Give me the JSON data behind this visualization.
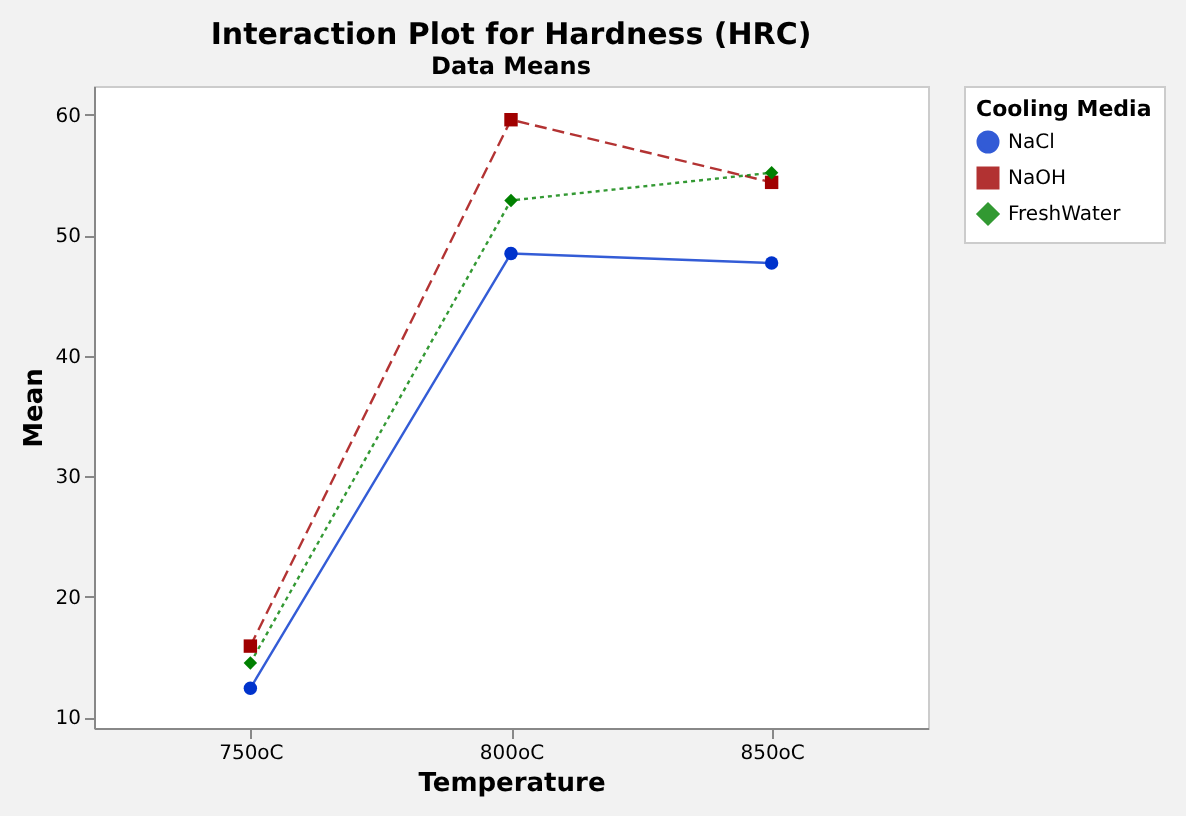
{
  "chart_data": {
    "type": "line",
    "title": "Interaction Plot for Hardness (HRC)",
    "subtitle": "Data Means",
    "xlabel": "Temperature",
    "ylabel": "Mean",
    "legend_title": "Cooling Media",
    "categories": [
      "750oC",
      "800oC",
      "850oC"
    ],
    "series": [
      {
        "name": "NaCl",
        "color": "#0033cc",
        "values": [
          12.4,
          48.5,
          47.7
        ],
        "marker": "circle",
        "line_style": "solid"
      },
      {
        "name": "NaOH",
        "color": "#a00000",
        "values": [
          15.9,
          59.6,
          54.4
        ],
        "marker": "square",
        "line_style": "dashed"
      },
      {
        "name": "FreshWater",
        "color": "#008000",
        "values": [
          14.5,
          52.9,
          55.2
        ],
        "marker": "diamond",
        "line_style": "dotted"
      }
    ],
    "ylim": [
      9.1,
      62.4
    ],
    "yticks": [
      10,
      20,
      30,
      40,
      50,
      60
    ],
    "grid": false,
    "legend": "top right"
  }
}
